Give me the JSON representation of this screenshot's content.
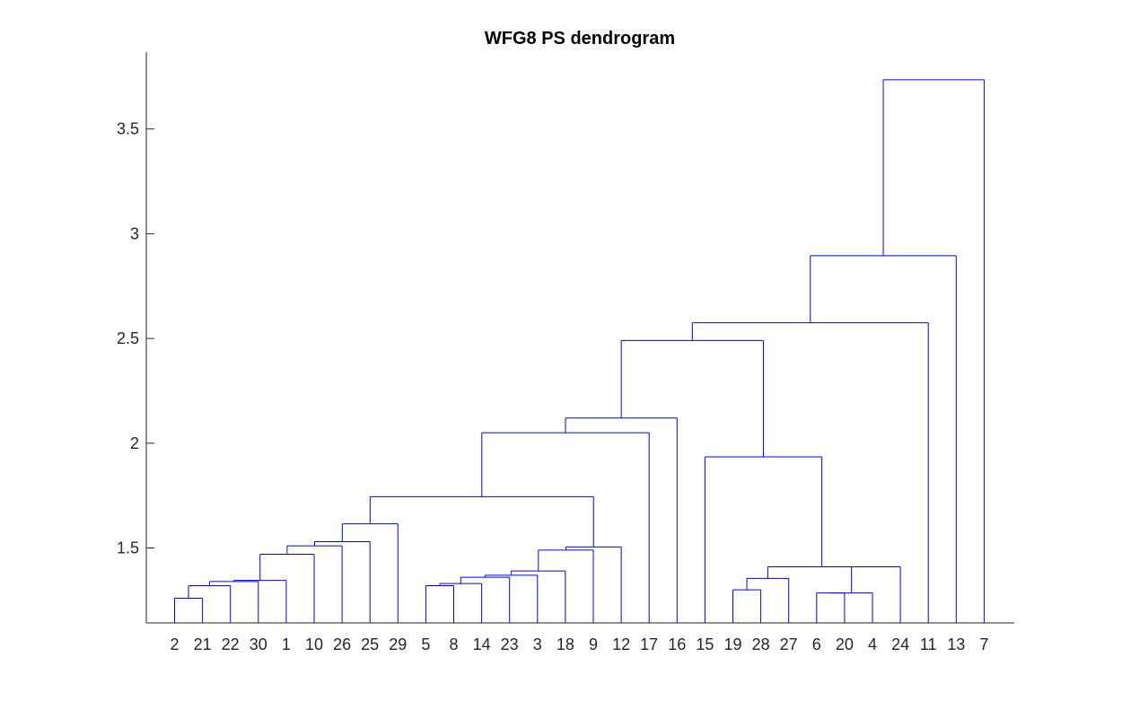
{
  "chart_data": {
    "type": "dendrogram",
    "title": "WFG8 PS dendrogram",
    "xlabel": "",
    "ylabel": "",
    "ylim": [
      1.14,
      3.87
    ],
    "yticks": [
      "1.5",
      "2",
      "2.5",
      "3",
      "3.5"
    ],
    "grid": false,
    "line_color": "#0000ff",
    "leaf_order": [
      "2",
      "21",
      "22",
      "30",
      "1",
      "10",
      "26",
      "25",
      "29",
      "5",
      "8",
      "14",
      "23",
      "3",
      "18",
      "9",
      "12",
      "17",
      "16",
      "15",
      "19",
      "28",
      "27",
      "6",
      "20",
      "4",
      "24",
      "11",
      "13",
      "7"
    ],
    "merges": [
      {
        "left": "2",
        "right": "21",
        "height": 1.26
      },
      {
        "left": "(2,21)",
        "right": "22",
        "height": 1.32
      },
      {
        "left": "(2,21,22)",
        "right": "30",
        "height": 1.34
      },
      {
        "left": "(2,21,22,30)",
        "right": "1",
        "height": 1.345
      },
      {
        "left": "(2,21,22,30,1)",
        "right": "10",
        "height": 1.47
      },
      {
        "left": "(...,10)",
        "right": "26",
        "height": 1.51
      },
      {
        "left": "(...,26)",
        "right": "25",
        "height": 1.53
      },
      {
        "left": "(...,25)",
        "right": "29",
        "height": 1.615
      },
      {
        "left": "5",
        "right": "8",
        "height": 1.32
      },
      {
        "left": "(5,8)",
        "right": "14",
        "height": 1.33
      },
      {
        "left": "(5,8,14)",
        "right": "23",
        "height": 1.36
      },
      {
        "left": "(...,23)",
        "right": "3",
        "height": 1.37
      },
      {
        "left": "(...,3)",
        "right": "18",
        "height": 1.39
      },
      {
        "left": "(...,18)",
        "right": "9",
        "height": 1.49
      },
      {
        "left": "(...,9)",
        "right": "12",
        "height": 1.505
      },
      {
        "left": "(2..29)",
        "right": "(5..12)",
        "height": 1.745
      },
      {
        "left": "(...)",
        "right": "17",
        "height": 2.05
      },
      {
        "left": "(...)",
        "right": "16",
        "height": 2.12
      },
      {
        "left": "19",
        "right": "28",
        "height": 1.3
      },
      {
        "left": "(19,28)",
        "right": "27",
        "height": 1.355
      },
      {
        "left": "6",
        "right": "20",
        "height": 1.285
      },
      {
        "left": "(6,20)",
        "right": "4",
        "height": 1.285
      },
      {
        "left": "(...,4)",
        "right": "24",
        "height": 1.41
      },
      {
        "left": "(19,28,27)",
        "right": "(6,20,4,24)",
        "height": 1.41
      },
      {
        "left": "15",
        "right": "(19..24)",
        "height": 1.935
      },
      {
        "left": "(2..16)",
        "right": "(15..24)",
        "height": 2.49
      },
      {
        "left": "(...)",
        "right": "11",
        "height": 2.575
      },
      {
        "left": "(...)",
        "right": "13",
        "height": 2.895
      },
      {
        "left": "(...)",
        "right": "7",
        "height": 3.735
      }
    ]
  }
}
